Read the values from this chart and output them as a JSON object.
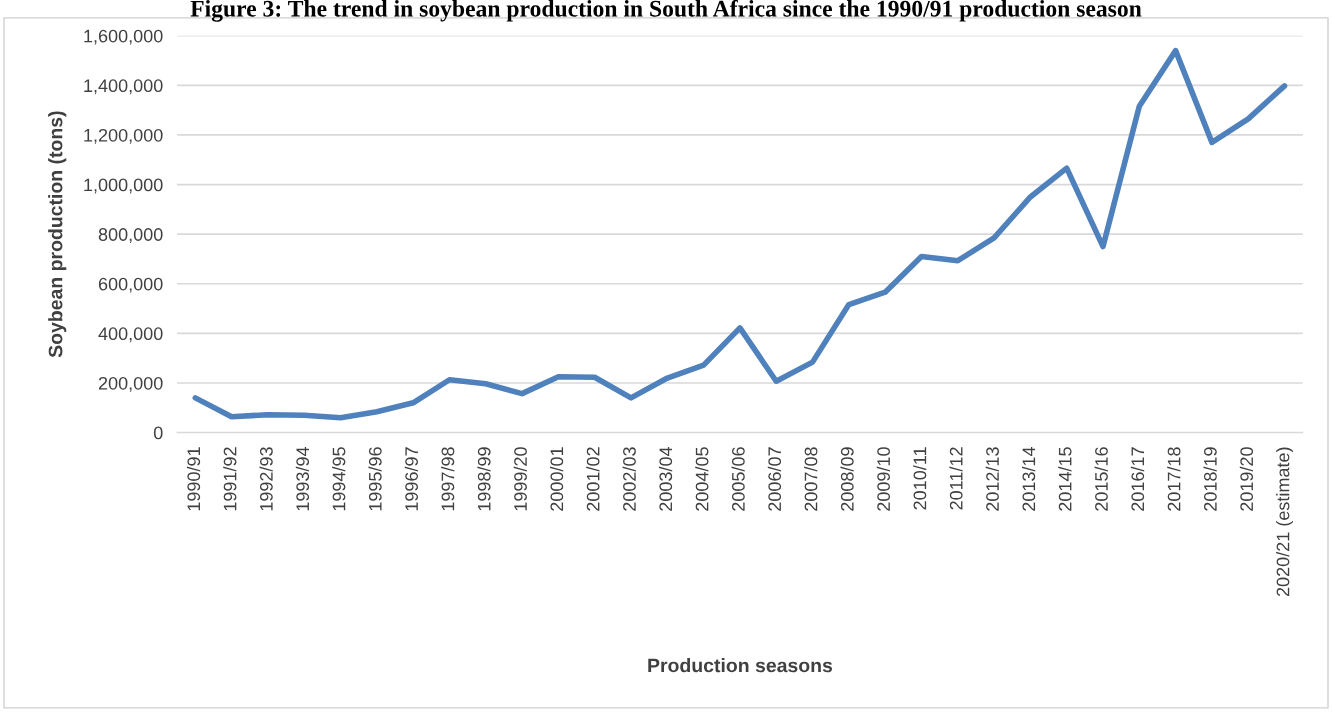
{
  "chart_data": {
    "type": "line",
    "title": "Figure 3: The trend in soybean production in South Africa since the 1990/91 production season",
    "xlabel": "Production seasons",
    "ylabel": "Soybean production (tons)",
    "categories": [
      "1990/91",
      "1991/92",
      "1992/93",
      "1993/94",
      "1994/95",
      "1995/96",
      "1996/97",
      "1997/98",
      "1998/99",
      "1999/20",
      "2000/01",
      "2001/02",
      "2002/03",
      "2003/04",
      "2004/05",
      "2005/06",
      "2006/07",
      "2007/08",
      "2008/09",
      "2009/10",
      "2010/11",
      "2011/12",
      "2012/13",
      "2013/14",
      "2014/15",
      "2015/16",
      "2016/17",
      "2017/18",
      "2018/19",
      "2019/20",
      "2020/21 (estimate)"
    ],
    "series": [
      {
        "color": "#4f81bd",
        "values": [
          140000,
          64000,
          72000,
          70000,
          60000,
          84000,
          120000,
          213000,
          197000,
          157000,
          225000,
          223000,
          140000,
          220000,
          272000,
          422000,
          207000,
          284000,
          516000,
          566000,
          710000,
          693000,
          785000,
          950000,
          1066000,
          750000,
          1316000,
          1540000,
          1170000,
          1265000,
          1398000
        ]
      }
    ],
    "ylim": [
      0,
      1600000
    ],
    "yticks": [
      {
        "value": 0,
        "label": "0"
      },
      {
        "value": 200000,
        "label": "200,000"
      },
      {
        "value": 400000,
        "label": "400,000"
      },
      {
        "value": 600000,
        "label": "600,000"
      },
      {
        "value": 800000,
        "label": "800,000"
      },
      {
        "value": 1000000,
        "label": "1,000,000"
      },
      {
        "value": 1200000,
        "label": "1,200,000"
      },
      {
        "value": 1400000,
        "label": "1,400,000"
      },
      {
        "value": 1600000,
        "label": "1,600,000"
      }
    ],
    "grid": "y",
    "marker": "none",
    "line_style": "solid"
  }
}
